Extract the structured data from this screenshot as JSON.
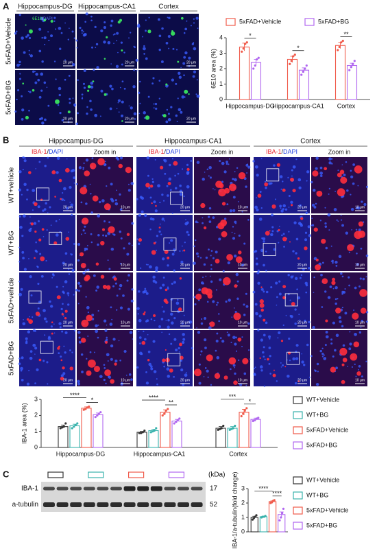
{
  "panel_a": {
    "letter": "A",
    "columns": [
      "Hippocampus-DG",
      "Hippocampus-CA1",
      "Cortex"
    ],
    "rows": [
      "5xFAD+Vehicle",
      "5xFAD+BG"
    ],
    "stain_green": "6E10",
    "separator": "/",
    "stain_blue": "DAPI",
    "scale_bar": "20 μm"
  },
  "panel_b": {
    "letter": "B",
    "regions": [
      "Hippocampus-DG",
      "Hippocampus-CA1",
      "Cortex"
    ],
    "rows": [
      "WT+vehicle",
      "WT+BG",
      "5xFAD+vehicle",
      "5xFAD+BG"
    ],
    "stain_red": "IBA-1",
    "separator": "/",
    "stain_blue": "DAPI",
    "zoom": "Zoom in",
    "scale_bar_main": "20 μm",
    "scale_bar_zoom": "10 μm"
  },
  "panel_c": {
    "letter": "C",
    "bands": [
      "IBA-1",
      "a-tubulin"
    ],
    "unit": "(kDa)",
    "sizes": [
      "17",
      "52"
    ]
  },
  "chart_data": [
    {
      "type": "bar",
      "ylabel": "6E10 area (%)",
      "categories": [
        "Hippocampus-DG",
        "Hippocampus-CA1",
        "Cortex"
      ],
      "ylim": [
        0,
        4
      ],
      "yticks": [
        0,
        1,
        2,
        3,
        4
      ],
      "legend": "top",
      "series": [
        {
          "name": "5xFAD+Vehicle",
          "color": "#f05a4a",
          "values": [
            3.4,
            2.6,
            3.5
          ],
          "errors": [
            0.25,
            0.2,
            0.2
          ],
          "points": [
            [
              3.1,
              3.3,
              3.6,
              3.7
            ],
            [
              2.3,
              2.5,
              2.8,
              2.9
            ],
            [
              3.2,
              3.4,
              3.7,
              3.8
            ]
          ]
        },
        {
          "name": "5xFAD+BG",
          "color": "#b066f0",
          "values": [
            2.4,
            1.9,
            2.2
          ],
          "errors": [
            0.2,
            0.15,
            0.15
          ],
          "points": [
            [
              2.0,
              2.2,
              2.6,
              2.7
            ],
            [
              1.6,
              1.8,
              2.0,
              2.2
            ],
            [
              1.9,
              2.1,
              2.3,
              2.5
            ]
          ]
        }
      ],
      "significance": [
        [
          "*"
        ],
        [
          "*"
        ],
        [
          "**"
        ]
      ]
    },
    {
      "type": "bar",
      "ylabel": "IBA-1 area (%)",
      "categories": [
        "Hippocampus-DG",
        "Hippocampus-CA1",
        "Cortex"
      ],
      "ylim": [
        0,
        3
      ],
      "yticks": [
        0,
        1,
        2,
        3
      ],
      "legend": "right",
      "series": [
        {
          "name": "WT+Vehicle",
          "color": "#333333",
          "values": [
            1.3,
            0.95,
            1.2
          ],
          "errors": [
            0.1,
            0.05,
            0.1
          ],
          "points": [
            [
              1.2,
              1.25,
              1.3,
              1.5
            ],
            [
              0.9,
              0.9,
              0.95,
              1.05
            ],
            [
              1.1,
              1.15,
              1.2,
              1.35
            ]
          ]
        },
        {
          "name": "WT+BG",
          "color": "#38b2ac",
          "values": [
            1.35,
            1.05,
            1.2
          ],
          "errors": [
            0.1,
            0.08,
            0.1
          ],
          "points": [
            [
              1.2,
              1.3,
              1.4,
              1.5
            ],
            [
              0.95,
              1.0,
              1.05,
              1.2
            ],
            [
              1.1,
              1.15,
              1.2,
              1.35
            ]
          ]
        },
        {
          "name": "5xFAD+Vehicle",
          "color": "#f05a4a",
          "values": [
            2.45,
            2.2,
            2.2
          ],
          "errors": [
            0.08,
            0.15,
            0.18
          ],
          "points": [
            [
              2.35,
              2.4,
              2.5,
              2.55
            ],
            [
              2.0,
              2.1,
              2.3,
              2.4
            ],
            [
              1.95,
              2.1,
              2.3,
              2.45
            ]
          ]
        },
        {
          "name": "5xFAD+BG",
          "color": "#b066f0",
          "values": [
            2.05,
            1.65,
            1.75
          ],
          "errors": [
            0.1,
            0.1,
            0.08
          ],
          "points": [
            [
              1.9,
              2.0,
              2.1,
              2.2
            ],
            [
              1.5,
              1.6,
              1.7,
              1.8
            ],
            [
              1.65,
              1.7,
              1.8,
              1.85
            ]
          ]
        }
      ],
      "significance": [
        [
          "****",
          "*"
        ],
        [
          "****",
          "**"
        ],
        [
          "***",
          "*"
        ]
      ]
    },
    {
      "type": "bar",
      "ylabel": "IBA-1/a-tubulin(fold change)",
      "categories": [
        null
      ],
      "ylim": [
        0,
        3
      ],
      "yticks": [
        0,
        1,
        2,
        3
      ],
      "legend": "right",
      "series": [
        {
          "name": "WT+Vehicle",
          "color": "#333333",
          "values": [
            1.0
          ],
          "errors": [
            0.08
          ],
          "points": [
            [
              0.85,
              0.95,
              1.05,
              1.15
            ]
          ]
        },
        {
          "name": "WT+BG",
          "color": "#38b2ac",
          "values": [
            1.05
          ],
          "errors": [
            0.03
          ],
          "points": [
            [
              1.0,
              1.05,
              1.05,
              1.1
            ]
          ]
        },
        {
          "name": "5xFAD+Vehicle",
          "color": "#f05a4a",
          "values": [
            2.1
          ],
          "errors": [
            0.05
          ],
          "points": [
            [
              2.0,
              2.05,
              2.15,
              2.2
            ]
          ]
        },
        {
          "name": "5xFAD+BG",
          "color": "#b066f0",
          "values": [
            1.2
          ],
          "errors": [
            0.18
          ],
          "points": [
            [
              0.8,
              1.0,
              1.3,
              1.6
            ]
          ]
        }
      ],
      "significance": [
        [
          "****",
          "****"
        ]
      ]
    }
  ]
}
